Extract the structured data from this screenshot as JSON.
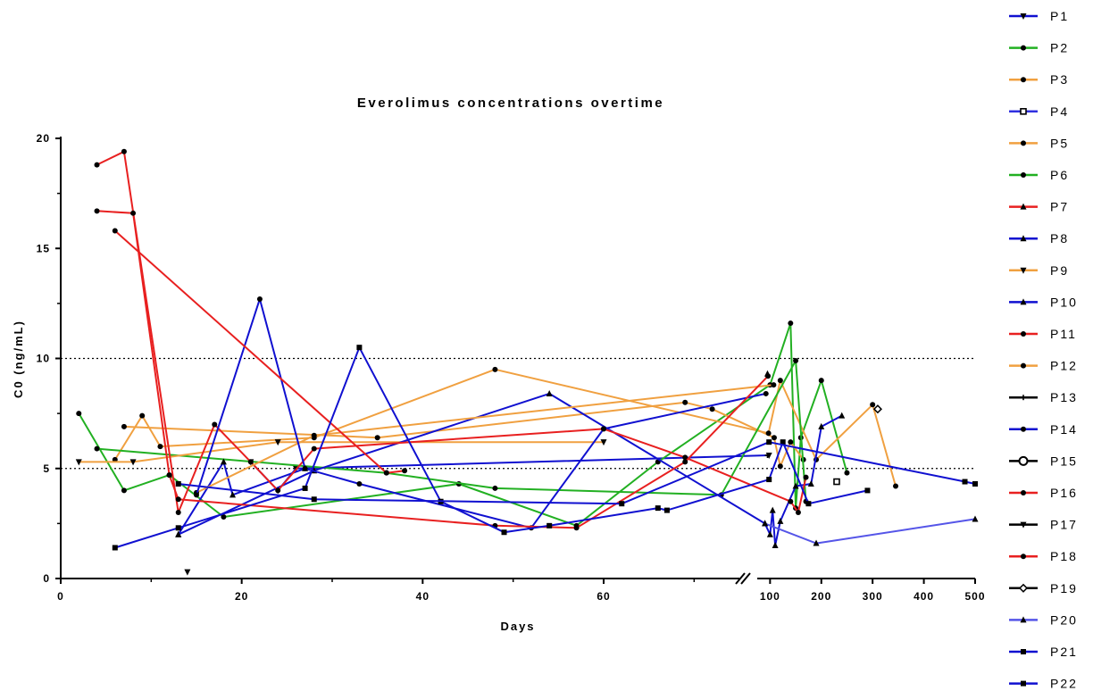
{
  "chart_data": {
    "type": "line",
    "title": "Everolimus concentrations overtime",
    "xlabel": "Days",
    "ylabel": "C0 (ng/mL)",
    "x_ticks": [
      "0",
      "20",
      "40",
      "60",
      "100",
      "200",
      "300",
      "400",
      "500"
    ],
    "y_ticks": [
      "0",
      "5",
      "10",
      "15",
      "20"
    ],
    "ylim": [
      0,
      20
    ],
    "x_axis": {
      "segment1": [
        0,
        75
      ],
      "segment2": [
        75,
        500
      ],
      "break": true
    },
    "reference_lines": [
      5,
      10
    ],
    "legend_position": "right",
    "series": [
      {
        "name": "P1",
        "color": "#1010d0",
        "marker": "tri-down",
        "points": [
          [
            21,
            5.3
          ],
          [
            24,
            4.0
          ],
          [
            26,
            5.0
          ],
          [
            98,
            5.6
          ]
        ]
      },
      {
        "name": "P2",
        "color": "#22b022",
        "marker": "circle",
        "points": [
          [
            2,
            7.5
          ],
          [
            7,
            4.0
          ],
          [
            12,
            4.7
          ],
          [
            18,
            2.8
          ],
          [
            44,
            4.3
          ],
          [
            57,
            2.4
          ],
          [
            66,
            5.3
          ],
          [
            100,
            8.8
          ],
          [
            140,
            11.6
          ],
          [
            150,
            3.2
          ],
          [
            160,
            6.4
          ],
          [
            200,
            9.0
          ],
          [
            250,
            4.8
          ]
        ]
      },
      {
        "name": "P3",
        "color": "#f0a040",
        "marker": "circle",
        "points": [
          [
            7,
            6.9
          ],
          [
            35,
            6.4
          ],
          [
            69,
            8.0
          ],
          [
            72,
            7.7
          ],
          [
            108,
            6.4
          ],
          [
            120,
            5.1
          ],
          [
            140,
            6.2
          ],
          [
            165,
            5.4
          ]
        ]
      },
      {
        "name": "P4",
        "color": "#3030e0",
        "marker": "square-open",
        "points": [
          [
            230,
            4.4
          ]
        ]
      },
      {
        "name": "P5",
        "color": "#f0a040",
        "marker": "circle",
        "points": [
          [
            6,
            5.4
          ],
          [
            9,
            7.4
          ],
          [
            11,
            6.0
          ],
          [
            28,
            6.4
          ],
          [
            48,
            9.5
          ],
          [
            97,
            6.6
          ],
          [
            120,
            9.0
          ],
          [
            190,
            5.4
          ],
          [
            300,
            7.9
          ],
          [
            345,
            4.2
          ]
        ]
      },
      {
        "name": "P6",
        "color": "#22b022",
        "marker": "circle",
        "points": [
          [
            4,
            5.9
          ],
          [
            36,
            4.8
          ],
          [
            48,
            4.1
          ],
          [
            73,
            3.8
          ],
          [
            150,
            9.9
          ],
          [
            170,
            3.5
          ]
        ]
      },
      {
        "name": "P7",
        "color": "#e82020",
        "marker": "triangle",
        "points": [
          [
            95,
            9.3
          ]
        ]
      },
      {
        "name": "P8",
        "color": "#1010d0",
        "marker": "triangle",
        "points": [
          [
            13,
            2.0
          ],
          [
            18,
            5.3
          ],
          [
            19,
            3.8
          ],
          [
            27,
            5.0
          ]
        ]
      },
      {
        "name": "P9",
        "color": "#f0a040",
        "marker": "tri-down",
        "points": [
          [
            2,
            5.3
          ],
          [
            8,
            5.3
          ],
          [
            24,
            6.2
          ],
          [
            60,
            6.2
          ]
        ]
      },
      {
        "name": "P10",
        "color": "#1010d0",
        "marker": "triangle",
        "points": [
          [
            13,
            2.0
          ],
          [
            28,
            4.9
          ],
          [
            54,
            8.4
          ],
          [
            90,
            2.5
          ],
          [
            100,
            2.0
          ],
          [
            105,
            3.1
          ],
          [
            110,
            1.5
          ],
          [
            120,
            2.6
          ],
          [
            150,
            4.2
          ],
          [
            180,
            4.3
          ],
          [
            200,
            6.9
          ],
          [
            240,
            7.4
          ]
        ]
      },
      {
        "name": "P11",
        "color": "#e82020",
        "marker": "circle",
        "points": [
          [
            4,
            18.8
          ],
          [
            7,
            19.4
          ],
          [
            13,
            3.0
          ],
          [
            17,
            7.0
          ],
          [
            21,
            5.3
          ],
          [
            24,
            4.0
          ],
          [
            28,
            5.9
          ],
          [
            60,
            6.8
          ],
          [
            69,
            5.5
          ],
          [
            140,
            3.5
          ],
          [
            155,
            3.0
          ],
          [
            170,
            4.6
          ]
        ]
      },
      {
        "name": "P12",
        "color": "#f0a040",
        "marker": "circle",
        "points": [
          [
            15,
            3.9
          ],
          [
            28,
            6.5
          ],
          [
            107,
            8.8
          ]
        ]
      },
      {
        "name": "P13",
        "color": "#000000",
        "marker": "plus",
        "points": [
          [
            95,
            5.6
          ]
        ]
      },
      {
        "name": "P14",
        "color": "#1010d0",
        "marker": "circle",
        "points": [
          [
            15,
            3.8
          ],
          [
            22,
            12.7
          ],
          [
            27,
            5.0
          ],
          [
            33,
            4.3
          ],
          [
            52,
            2.3
          ],
          [
            60,
            6.8
          ],
          [
            92,
            8.4
          ]
        ]
      },
      {
        "name": "P15",
        "color": "#000000",
        "marker": "circle-open",
        "points": []
      },
      {
        "name": "P16",
        "color": "#e82020",
        "marker": "circle",
        "points": [
          [
            4,
            16.7
          ],
          [
            8,
            16.6
          ],
          [
            12,
            4.7
          ],
          [
            13,
            3.6
          ],
          [
            48,
            2.4
          ],
          [
            57,
            2.3
          ],
          [
            69,
            5.3
          ],
          [
            96,
            9.2
          ]
        ]
      },
      {
        "name": "P17",
        "color": "#000000",
        "marker": "tri-down",
        "points": [
          [
            14,
            0.3
          ]
        ]
      },
      {
        "name": "P18",
        "color": "#e82020",
        "marker": "circle",
        "points": [
          [
            6,
            15.8
          ],
          [
            36,
            4.8
          ],
          [
            38,
            4.9
          ]
        ]
      },
      {
        "name": "P19",
        "color": "#000000",
        "marker": "diamond",
        "points": [
          [
            310,
            7.7
          ]
        ]
      },
      {
        "name": "P20",
        "color": "#5555e8",
        "marker": "triangle",
        "points": [
          [
            90,
            2.5
          ],
          [
            190,
            1.6
          ],
          [
            500,
            2.7
          ]
        ]
      },
      {
        "name": "P21",
        "color": "#1010d0",
        "marker": "square",
        "points": [
          [
            6,
            1.4
          ],
          [
            13,
            2.3
          ],
          [
            27,
            4.1
          ],
          [
            33,
            10.5
          ],
          [
            42,
            3.5
          ],
          [
            49,
            2.1
          ],
          [
            54,
            2.4
          ],
          [
            66,
            3.2
          ],
          [
            67,
            3.1
          ],
          [
            98,
            4.5
          ],
          [
            125,
            6.2
          ],
          [
            175,
            3.4
          ],
          [
            290,
            4.0
          ]
        ]
      },
      {
        "name": "P22",
        "color": "#1010d0",
        "marker": "square",
        "points": [
          [
            13,
            4.3
          ],
          [
            28,
            3.6
          ],
          [
            62,
            3.4
          ],
          [
            98,
            6.2
          ],
          [
            480,
            4.4
          ],
          [
            500,
            4.3
          ]
        ]
      }
    ]
  }
}
